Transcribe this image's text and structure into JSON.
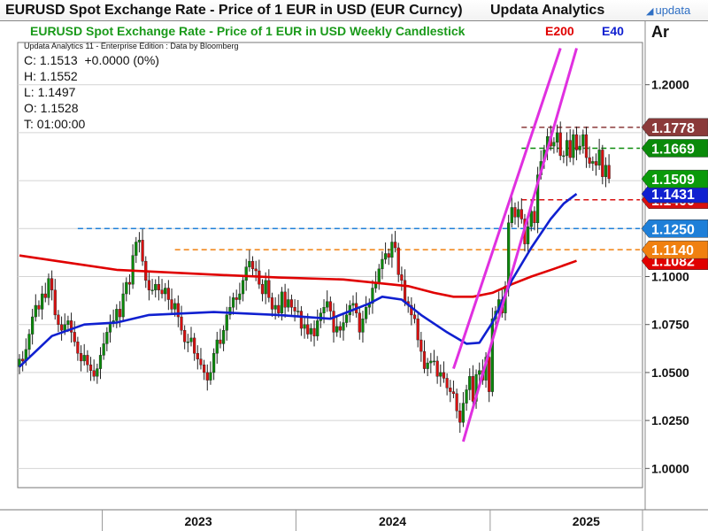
{
  "header": {
    "title": "EURUSD Spot Exchange Rate - Price of 1 EUR in USD (EUR Curncy)",
    "brand": "Updata Analytics",
    "logo_text": "updata"
  },
  "chart_data": {
    "type": "candlestick",
    "title": "EURUSD Spot Exchange Rate - Price of 1 EUR in USD Weekly Candlestick",
    "subtitle": "Updata Analytics 11 - Enterprise Edition : Data by Bloomberg",
    "indicator_labels": [
      {
        "text": "E200",
        "color": "#e00000"
      },
      {
        "text": "E40",
        "color": "#1020d0"
      }
    ],
    "axis_unit_label": "Ar",
    "ohlc_readout": [
      "C: 1.1513  +0.0000 (0%)",
      "H: 1.1552",
      "L: 1.1497",
      "O: 1.1528",
      "T: 01:00:00"
    ],
    "ylim": [
      0.99,
      1.222
    ],
    "yticks": [
      1.0,
      1.025,
      1.05,
      1.075,
      1.1,
      1.125,
      1.15,
      1.175,
      1.2
    ],
    "ytick_labels": [
      "1.0000",
      "1.0250",
      "1.0500",
      "1.0750",
      "1.1000",
      "",
      "",
      "",
      "1.2000"
    ],
    "x_range": [
      "2022-07-29",
      "2025-12-31"
    ],
    "x_labels": [
      {
        "text": "2023",
        "date": "2023-07-01"
      },
      {
        "text": "2024",
        "date": "2024-07-01"
      },
      {
        "text": "2025",
        "date": "2025-07-01"
      }
    ],
    "year_dividers": [
      "2023-01-01",
      "2024-01-01",
      "2025-01-01",
      "2026-01-01"
    ],
    "candle_colors": {
      "up": "#0a8a0a",
      "down": "#d81010"
    },
    "closes": [
      1.057,
      1.056,
      1.062,
      1.07,
      1.079,
      1.085,
      1.083,
      1.091,
      1.089,
      1.099,
      1.093,
      1.08,
      1.075,
      1.072,
      1.075,
      1.077,
      1.071,
      1.066,
      1.06,
      1.056,
      1.059,
      1.054,
      1.051,
      1.048,
      1.052,
      1.059,
      1.065,
      1.071,
      1.076,
      1.077,
      1.083,
      1.079,
      1.091,
      1.097,
      1.096,
      1.111,
      1.118,
      1.119,
      1.108,
      1.098,
      1.093,
      1.093,
      1.096,
      1.093,
      1.091,
      1.094,
      1.088,
      1.083,
      1.086,
      1.079,
      1.072,
      1.066,
      1.066,
      1.068,
      1.06,
      1.057,
      1.054,
      1.05,
      1.046,
      1.05,
      1.06,
      1.067,
      1.065,
      1.072,
      1.08,
      1.084,
      1.089,
      1.088,
      1.091,
      1.098,
      1.105,
      1.108,
      1.104,
      1.103,
      1.096,
      1.091,
      1.098,
      1.089,
      1.083,
      1.085,
      1.081,
      1.092,
      1.084,
      1.088,
      1.084,
      1.082,
      1.082,
      1.073,
      1.075,
      1.07,
      1.073,
      1.069,
      1.077,
      1.081,
      1.084,
      1.087,
      1.082,
      1.071,
      1.074,
      1.072,
      1.076,
      1.08,
      1.085,
      1.086,
      1.081,
      1.071,
      1.078,
      1.084,
      1.086,
      1.094,
      1.097,
      1.104,
      1.109,
      1.112,
      1.11,
      1.118,
      1.115,
      1.101,
      1.098,
      1.087,
      1.085,
      1.08,
      1.078,
      1.067,
      1.061,
      1.052,
      1.055,
      1.056,
      1.056,
      1.048,
      1.05,
      1.047,
      1.042,
      1.04,
      1.039,
      1.03,
      1.024,
      1.034,
      1.041,
      1.048,
      1.035,
      1.049,
      1.051,
      1.046,
      1.058,
      1.04,
      1.078,
      1.082,
      1.088,
      1.081,
      1.095,
      1.128,
      1.136,
      1.131,
      1.135,
      1.13,
      1.117,
      1.126,
      1.134,
      1.128,
      1.153,
      1.16,
      1.166,
      1.173,
      1.168,
      1.17,
      1.175,
      1.163,
      1.163,
      1.171,
      1.162,
      1.174,
      1.166,
      1.168,
      1.174,
      1.162,
      1.159,
      1.16,
      1.158,
      1.166,
      1.152,
      1.158,
      1.151
    ],
    "ema200": {
      "name": "E200",
      "color": "#e00000",
      "points": [
        [
          0,
          1.111
        ],
        [
          12,
          1.108
        ],
        [
          30,
          1.1035
        ],
        [
          60,
          1.101
        ],
        [
          80,
          1.0995
        ],
        [
          100,
          1.0985
        ],
        [
          120,
          1.095
        ],
        [
          128,
          1.0915
        ],
        [
          134,
          1.0895
        ],
        [
          140,
          1.0895
        ],
        [
          146,
          1.0915
        ],
        [
          152,
          1.096
        ],
        [
          158,
          1.1
        ],
        [
          165,
          1.104
        ],
        [
          172,
          1.1082
        ]
      ]
    },
    "ema40": {
      "name": "E40",
      "color": "#1020d0",
      "points": [
        [
          0,
          1.053
        ],
        [
          10,
          1.069
        ],
        [
          20,
          1.075
        ],
        [
          30,
          1.076
        ],
        [
          40,
          1.08
        ],
        [
          60,
          1.0815
        ],
        [
          80,
          1.08
        ],
        [
          96,
          1.078
        ],
        [
          108,
          1.086
        ],
        [
          112,
          1.0895
        ],
        [
          118,
          1.088
        ],
        [
          124,
          1.08
        ],
        [
          132,
          1.071
        ],
        [
          138,
          1.065
        ],
        [
          142,
          1.0655
        ],
        [
          146,
          1.076
        ],
        [
          152,
          1.098
        ],
        [
          158,
          1.115
        ],
        [
          164,
          1.13
        ],
        [
          168,
          1.138
        ],
        [
          172,
          1.1431
        ]
      ]
    },
    "channel_lines": {
      "color": "#e030e0",
      "lines": [
        [
          [
            134,
            1.052
          ],
          [
            167,
            1.219
          ]
        ],
        [
          [
            137,
            1.014
          ],
          [
            172,
            1.219
          ]
        ]
      ]
    },
    "level_lines": [
      {
        "value": 1.1778,
        "color": "#8b3a3a",
        "label": "1.1778",
        "start": 155
      },
      {
        "value": 1.1669,
        "color": "#0a8a0a",
        "label": "1.1669",
        "start": 155
      },
      {
        "value": 1.14,
        "color": "#d81010",
        "label": "1.1400",
        "start": 155
      },
      {
        "value": 1.125,
        "color": "#1e7fd8",
        "label": "1.1250",
        "start": 18
      },
      {
        "value": 1.114,
        "color": "#f08010",
        "label": "1.1140",
        "start": 48
      }
    ],
    "price_flags": [
      {
        "value": 1.1509,
        "label": "1.1509",
        "color": "#0a9a0a"
      },
      {
        "value": 1.1431,
        "label": "1.1431",
        "color": "#1020d0"
      },
      {
        "value": 1.1082,
        "label": "1.1082",
        "color": "#e00000"
      }
    ]
  }
}
